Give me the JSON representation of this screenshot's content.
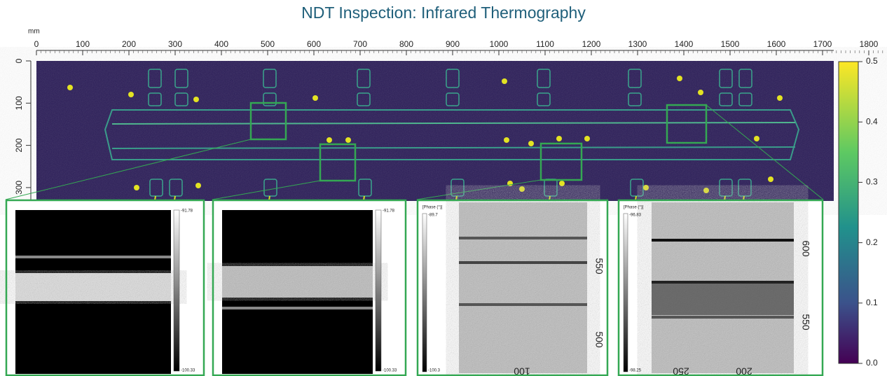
{
  "title": "NDT Inspection: Infrared Thermography",
  "main_view": {
    "unit": "mm",
    "xlim": [
      0,
      1850
    ],
    "ylim": [
      0,
      330
    ],
    "xticks": [
      0,
      100,
      200,
      300,
      400,
      500,
      600,
      700,
      800,
      900,
      1000,
      1100,
      1200,
      1300,
      1400,
      1500,
      1600,
      1700,
      1800
    ],
    "yticks": [
      0,
      100,
      200,
      300
    ]
  },
  "colorbar": {
    "lim": [
      0,
      0.5
    ],
    "ticks": [
      {
        "value": 0,
        "label": "0.0"
      },
      0.1,
      0.2,
      0.3,
      0.4,
      0.5
    ]
  },
  "insets": [
    {
      "scale_top": "-91.78",
      "scale_bottom": "-100.33"
    },
    {
      "scale_top": "-91.78",
      "scale_bottom": "-100.33"
    },
    {
      "scale_title": "[Phase (°)]",
      "scale_top": "-89.7",
      "scale_bottom": "-100.3",
      "y_labels": [
        "550",
        "500"
      ],
      "x_labels": [
        "100"
      ]
    },
    {
      "scale_title": "[Phase (°)]",
      "scale_top": "-96.83",
      "scale_bottom": "-98.25",
      "y_labels": [
        "600",
        "550"
      ],
      "x_labels": [
        "250",
        "200"
      ]
    }
  ]
}
